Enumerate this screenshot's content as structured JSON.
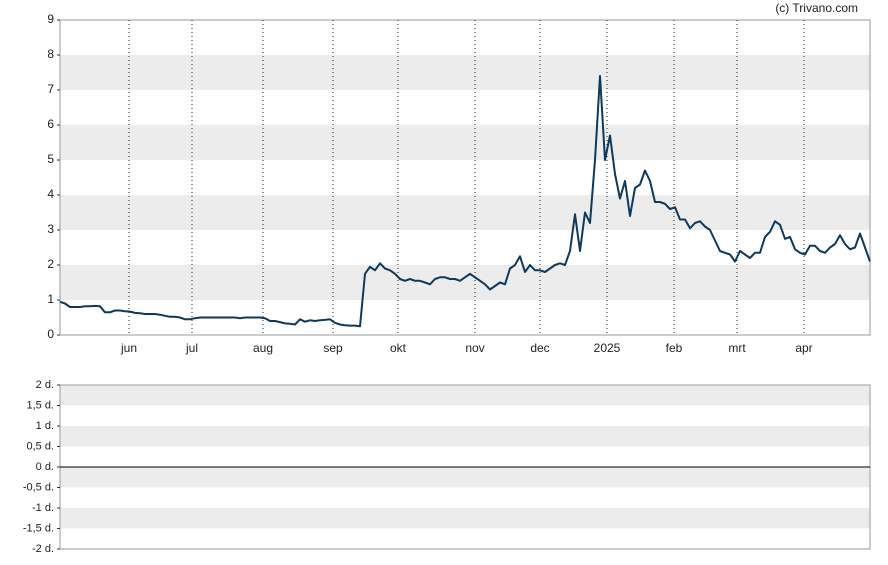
{
  "chart_data": [
    {
      "type": "line",
      "source": "(c) Trivano.com",
      "xlim": [
        0,
        162
      ],
      "xticks": [
        {
          "value": 13.8,
          "label": "jun"
        },
        {
          "value": 26.4,
          "label": "jul"
        },
        {
          "value": 40.6,
          "label": "aug"
        },
        {
          "value": 54.6,
          "label": "sep"
        },
        {
          "value": 67.6,
          "label": "okt"
        },
        {
          "value": 83,
          "label": "nov"
        },
        {
          "value": 96,
          "label": "dec"
        },
        {
          "value": 109.4,
          "label": "2025"
        },
        {
          "value": 122.8,
          "label": "feb"
        },
        {
          "value": 135.4,
          "label": "mrt"
        },
        {
          "value": 148.8,
          "label": "apr"
        }
      ],
      "ylim": [
        0,
        9
      ],
      "yticks": [
        0,
        1,
        2,
        3,
        4,
        5,
        6,
        7,
        8,
        9
      ],
      "grid": true,
      "series": [
        {
          "color": "#0d3a5c",
          "values": [
            0.95,
            0.9,
            0.8,
            0.8,
            0.8,
            0.82,
            0.82,
            0.83,
            0.82,
            0.65,
            0.65,
            0.7,
            0.7,
            0.68,
            0.67,
            0.63,
            0.62,
            0.6,
            0.6,
            0.6,
            0.58,
            0.55,
            0.52,
            0.52,
            0.5,
            0.45,
            0.45,
            0.48,
            0.5,
            0.5,
            0.5,
            0.5,
            0.5,
            0.5,
            0.5,
            0.5,
            0.48,
            0.5,
            0.5,
            0.5,
            0.5,
            0.48,
            0.4,
            0.4,
            0.37,
            0.33,
            0.32,
            0.3,
            0.45,
            0.38,
            0.42,
            0.4,
            0.42,
            0.43,
            0.45,
            0.35,
            0.3,
            0.28,
            0.27,
            0.27,
            0.25,
            1.75,
            1.95,
            1.85,
            2.05,
            1.9,
            1.85,
            1.75,
            1.6,
            1.55,
            1.6,
            1.55,
            1.55,
            1.5,
            1.45,
            1.6,
            1.65,
            1.65,
            1.6,
            1.6,
            1.55,
            1.65,
            1.75,
            1.65,
            1.55,
            1.45,
            1.3,
            1.4,
            1.5,
            1.45,
            1.9,
            2.0,
            2.25,
            1.8,
            2.0,
            1.85,
            1.85,
            1.8,
            1.9,
            2.0,
            2.05,
            2.0,
            2.4,
            3.45,
            2.4,
            3.5,
            3.2,
            5.0,
            7.4,
            5.0,
            5.7,
            4.6,
            3.9,
            4.4,
            3.4,
            4.2,
            4.3,
            4.7,
            4.4,
            3.8,
            3.8,
            3.75,
            3.6,
            3.65,
            3.3,
            3.3,
            3.05,
            3.2,
            3.25,
            3.1,
            3.0,
            2.7,
            2.4,
            2.35,
            2.3,
            2.1,
            2.4,
            2.3,
            2.2,
            2.35,
            2.35,
            2.8,
            2.95,
            3.25,
            3.15,
            2.75,
            2.8,
            2.45,
            2.35,
            2.3,
            2.55,
            2.55,
            2.4,
            2.35,
            2.5,
            2.6,
            2.85,
            2.6,
            2.45,
            2.5,
            2.9,
            2.5,
            2.1
          ]
        }
      ]
    },
    {
      "type": "bar",
      "ylim": [
        -2,
        2
      ],
      "yticks": [
        {
          "value": -2,
          "label": "-2 d."
        },
        {
          "value": -1.5,
          "label": "-1,5 d."
        },
        {
          "value": -1,
          "label": "-1 d."
        },
        {
          "value": -0.5,
          "label": "-0,5 d."
        },
        {
          "value": 0,
          "label": "0 d."
        },
        {
          "value": 0.5,
          "label": "0,5 d."
        },
        {
          "value": 1,
          "label": "1 d."
        },
        {
          "value": 1.5,
          "label": "1,5 d."
        },
        {
          "value": 2,
          "label": "2 d."
        }
      ],
      "grid": true,
      "series": []
    }
  ]
}
